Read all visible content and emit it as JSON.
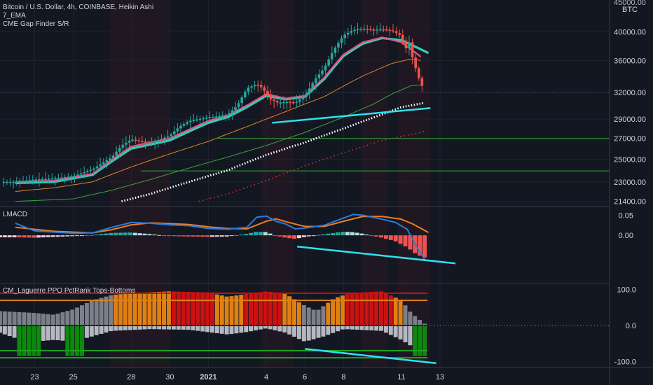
{
  "header": {
    "symbol_line": "Bitcoin / U.S. Dollar, 4h, COINBASE, Heikin Ashi",
    "indicator_1": "7_EMA",
    "indicator_2": "CME Gap Finder S/R",
    "currency_top": "45000.00",
    "currency_unit": "BTC"
  },
  "panes": {
    "macd_label": "LMACD",
    "laguerre_label": "CM_Laguerre PPO PctRank Tops-Bottoms"
  },
  "colors": {
    "background": "#131722",
    "up_candle": "#26a69a",
    "down_candle": "#ef5350",
    "ema_fast": "#e6508a",
    "ema_slow": "#2ed1b6",
    "trendline": "#2de2f0",
    "macd_line": "#2a7bdc",
    "signal_line": "#f07c1e",
    "hist_red": "#cc1111",
    "hist_orange": "#e07f14",
    "hist_green": "#0c8a0c",
    "hist_gray": "#7b7f8a"
  },
  "chart_data": [
    {
      "type": "candlestick",
      "title": "Bitcoin / U.S. Dollar, 4h, COINBASE, Heikin Ashi",
      "y_axis_ticks": [
        "40000.00",
        "36000.00",
        "32000.00",
        "29000.00",
        "27000.00",
        "25000.00",
        "23000.00",
        "21400.00"
      ],
      "y_tick_values": [
        40000,
        36000,
        32000,
        29000,
        27000,
        25000,
        23000,
        21400
      ],
      "ylim": [
        21000,
        45000
      ],
      "scale": "log",
      "date_ticks": [
        "23",
        "25",
        "28",
        "30",
        "2021",
        "4",
        "6",
        "8",
        "11",
        "13"
      ],
      "date_tick_days": [
        0,
        2,
        5,
        7,
        9,
        12,
        14,
        16,
        19,
        21
      ],
      "close_path": [
        [
          -1,
          23000
        ],
        [
          0,
          23200
        ],
        [
          1,
          23300
        ],
        [
          2,
          23500
        ],
        [
          3,
          24100
        ],
        [
          4,
          25200
        ],
        [
          4.5,
          26300
        ],
        [
          5,
          26900
        ],
        [
          5.5,
          26700
        ],
        [
          6,
          26600
        ],
        [
          6.5,
          26900
        ],
        [
          7,
          27300
        ],
        [
          7.5,
          28200
        ],
        [
          8,
          28800
        ],
        [
          8.5,
          29000
        ],
        [
          9,
          29200
        ],
        [
          9.5,
          29300
        ],
        [
          10,
          29500
        ],
        [
          10.5,
          30500
        ],
        [
          11,
          32500
        ],
        [
          11.5,
          33000
        ],
        [
          11.8,
          32500
        ],
        [
          12.2,
          31200
        ],
        [
          12.6,
          30800
        ],
        [
          13,
          30900
        ],
        [
          13.5,
          30800
        ],
        [
          14,
          31600
        ],
        [
          14.5,
          33500
        ],
        [
          15,
          35000
        ],
        [
          15.5,
          37500
        ],
        [
          16,
          39500
        ],
        [
          16.5,
          40300
        ],
        [
          17,
          40500
        ],
        [
          17.5,
          40300
        ],
        [
          18,
          40400
        ],
        [
          18.5,
          40200
        ],
        [
          19,
          39400
        ],
        [
          19.2,
          37500
        ],
        [
          19.4,
          38500
        ],
        [
          19.6,
          36000
        ],
        [
          19.8,
          34500
        ],
        [
          20,
          33000
        ],
        [
          20.15,
          32500
        ]
      ],
      "ema_fast": [
        [
          -1,
          23000
        ],
        [
          1,
          23100
        ],
        [
          3,
          23700
        ],
        [
          5,
          26200
        ],
        [
          7,
          27000
        ],
        [
          9,
          28800
        ],
        [
          10,
          29400
        ],
        [
          11,
          30500
        ],
        [
          12,
          31800
        ],
        [
          13,
          31300
        ],
        [
          14,
          31600
        ],
        [
          15,
          33800
        ],
        [
          16,
          36800
        ],
        [
          17,
          38500
        ],
        [
          18,
          39200
        ],
        [
          19,
          38500
        ],
        [
          20,
          36500
        ]
      ],
      "ema_slow": [
        [
          -1,
          22900
        ],
        [
          1,
          23000
        ],
        [
          3,
          23600
        ],
        [
          5,
          26000
        ],
        [
          7,
          26800
        ],
        [
          9,
          28600
        ],
        [
          10,
          29200
        ],
        [
          11,
          30300
        ],
        [
          12,
          31600
        ],
        [
          13,
          31200
        ],
        [
          14,
          31500
        ],
        [
          15,
          33600
        ],
        [
          16,
          36600
        ],
        [
          17,
          38300
        ],
        [
          18,
          39100
        ],
        [
          19,
          38800
        ],
        [
          20.4,
          37000
        ]
      ],
      "sma_orange": [
        [
          -1,
          22200
        ],
        [
          1,
          22500
        ],
        [
          3,
          23000
        ],
        [
          5,
          24300
        ],
        [
          7,
          25500
        ],
        [
          9,
          26700
        ],
        [
          11,
          28200
        ],
        [
          13,
          29800
        ],
        [
          15,
          31500
        ],
        [
          17,
          34000
        ],
        [
          18.5,
          35600
        ],
        [
          19.5,
          36200
        ],
        [
          20,
          36000
        ]
      ],
      "sma_green": [
        [
          -1,
          21400
        ],
        [
          2,
          21600
        ],
        [
          4,
          22300
        ],
        [
          6,
          23200
        ],
        [
          8,
          24200
        ],
        [
          10,
          25200
        ],
        [
          12,
          26300
        ],
        [
          14,
          27600
        ],
        [
          16,
          29200
        ],
        [
          17.5,
          30600
        ],
        [
          18.5,
          31800
        ],
        [
          19.5,
          32800
        ],
        [
          20,
          32900
        ]
      ],
      "white_dotted": [
        [
          4.5,
          21400
        ],
        [
          6,
          22000
        ],
        [
          8,
          23000
        ],
        [
          10,
          24000
        ],
        [
          12,
          25400
        ],
        [
          14,
          26600
        ],
        [
          16,
          28000
        ],
        [
          18,
          29500
        ],
        [
          19,
          30300
        ],
        [
          20,
          30700
        ],
        [
          20.2,
          30800
        ]
      ],
      "red_dotted": [
        [
          8.5,
          21400
        ],
        [
          10,
          22000
        ],
        [
          12,
          23100
        ],
        [
          14,
          24400
        ],
        [
          16,
          25600
        ],
        [
          18,
          26800
        ],
        [
          20,
          27600
        ],
        [
          20.3,
          27800
        ]
      ],
      "horizontal_levels": [
        {
          "value": 27000,
          "from_day": 9.5
        },
        {
          "value": 23950,
          "from_day": 5.5
        }
      ],
      "trendlines": [
        {
          "from": [
            12.3,
            28600
          ],
          "to": [
            20.5,
            30200
          ]
        }
      ]
    },
    {
      "type": "line",
      "title": "LMACD",
      "y_axis_ticks": [
        "0.05",
        "0.00"
      ],
      "y_tick_values": [
        0.05,
        0.0
      ],
      "ylim": [
        -0.12,
        0.07
      ],
      "series": [
        {
          "values": [
            [
              -1,
              0.03
            ],
            [
              0,
              0.011
            ],
            [
              1,
              0.008
            ],
            [
              2,
              0.005
            ],
            [
              3,
              0.006
            ],
            [
              4,
              0.02
            ],
            [
              5,
              0.032
            ],
            [
              6,
              0.03
            ],
            [
              7,
              0.026
            ],
            [
              8,
              0.024
            ],
            [
              9,
              0.017
            ],
            [
              10,
              0.015
            ],
            [
              11,
              0.02
            ],
            [
              11.5,
              0.045
            ],
            [
              12,
              0.048
            ],
            [
              12.5,
              0.035
            ],
            [
              13,
              0.028
            ],
            [
              13.5,
              0.016
            ],
            [
              14,
              0.018
            ],
            [
              15,
              0.025
            ],
            [
              16,
              0.043
            ],
            [
              16.5,
              0.052
            ],
            [
              17,
              0.05
            ],
            [
              18,
              0.04
            ],
            [
              18.7,
              0.032
            ],
            [
              19.3,
              0.015
            ],
            [
              19.8,
              -0.03
            ],
            [
              20.2,
              -0.06
            ]
          ]
        },
        {
          "values": [
            [
              -1,
              0.02
            ],
            [
              1,
              0.01
            ],
            [
              3,
              0.006
            ],
            [
              4,
              0.014
            ],
            [
              5,
              0.026
            ],
            [
              6,
              0.031
            ],
            [
              7,
              0.029
            ],
            [
              8,
              0.027
            ],
            [
              9,
              0.021
            ],
            [
              10,
              0.017
            ],
            [
              11,
              0.016
            ],
            [
              12,
              0.035
            ],
            [
              12.5,
              0.041
            ],
            [
              13,
              0.034
            ],
            [
              14,
              0.022
            ],
            [
              15,
              0.022
            ],
            [
              16,
              0.035
            ],
            [
              17,
              0.047
            ],
            [
              18,
              0.047
            ],
            [
              19,
              0.04
            ],
            [
              19.6,
              0.028
            ],
            [
              20.4,
              0.007
            ]
          ]
        }
      ],
      "histogram": [
        [
          -1,
          -0.005
        ],
        [
          0,
          -0.006
        ],
        [
          1,
          -0.004
        ],
        [
          2,
          -0.002
        ],
        [
          3,
          0.001
        ],
        [
          4,
          0.006
        ],
        [
          5,
          0.007
        ],
        [
          6,
          0.003
        ],
        [
          7,
          -0.002
        ],
        [
          8,
          -0.003
        ],
        [
          9,
          -0.004
        ],
        [
          10,
          -0.003
        ],
        [
          11,
          0.004
        ],
        [
          11.5,
          0.009
        ],
        [
          12,
          0.008
        ],
        [
          12.5,
          -0.001
        ],
        [
          13,
          -0.006
        ],
        [
          13.5,
          -0.009
        ],
        [
          14,
          -0.004
        ],
        [
          15,
          0.003
        ],
        [
          16,
          0.009
        ],
        [
          16.5,
          0.008
        ],
        [
          17,
          0.004
        ],
        [
          18,
          -0.006
        ],
        [
          18.7,
          -0.015
        ],
        [
          19.3,
          -0.03
        ],
        [
          19.8,
          -0.048
        ],
        [
          20.2,
          -0.055
        ]
      ],
      "trendlines": [
        {
          "from": [
            13.6,
            -0.028
          ],
          "to": [
            21.8,
            -0.07
          ]
        }
      ]
    },
    {
      "type": "bar",
      "title": "CM_Laguerre PPO PctRank Tops-Bottoms",
      "y_axis_ticks": [
        "100.0",
        "0.0",
        "-100.0"
      ],
      "y_tick_values": [
        100,
        0,
        -100
      ],
      "ylim": [
        -115,
        115
      ],
      "horizontal_levels": [
        90,
        70,
        -70,
        -90
      ],
      "trendlines": [
        {
          "from": [
            14,
            -65
          ],
          "to": [
            20.8,
            -105
          ]
        }
      ]
    }
  ]
}
